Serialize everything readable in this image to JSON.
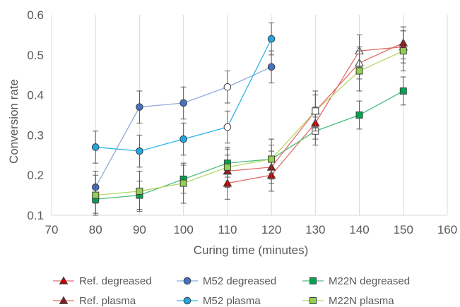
{
  "chart_data": {
    "type": "line",
    "title": "",
    "xlabel": "Curing time (minutes)",
    "ylabel": "Conversion rate",
    "xlim": [
      70,
      160
    ],
    "ylim": [
      0.1,
      0.6
    ],
    "x_ticks": [
      70,
      80,
      90,
      100,
      110,
      120,
      130,
      140,
      150,
      160
    ],
    "y_ticks": [
      0.1,
      0.2,
      0.3,
      0.4,
      0.5,
      0.6
    ],
    "x_tick_labels": [
      "70",
      "80",
      "90",
      "100",
      "110",
      "120",
      "130",
      "140",
      "150",
      "160"
    ],
    "y_tick_labels": [
      "0.1",
      "0.2",
      "0.3",
      "0.4",
      "0.5",
      "0.6"
    ],
    "grid": {
      "vertical": true,
      "horizontal": false
    },
    "legend_position": "bottom",
    "series": [
      {
        "name": "Ref. degreased",
        "color": "#e36c6c",
        "marker": "triangle",
        "marker_fill": "#c00000",
        "x": [
          110,
          120,
          130,
          140,
          150
        ],
        "y": [
          0.18,
          0.2,
          0.33,
          0.51,
          0.52
        ],
        "err": [
          0.04,
          0.04,
          0.04,
          0.04,
          0.04
        ],
        "hollow": [
          false,
          false,
          false,
          true,
          false
        ]
      },
      {
        "name": "M52 degreased",
        "color": "#8eaadb",
        "marker": "circle",
        "marker_fill": "#4472c4",
        "x": [
          80,
          90,
          100,
          110,
          120
        ],
        "y": [
          0.17,
          0.37,
          0.38,
          0.42,
          0.47
        ],
        "err": [
          0.04,
          0.04,
          0.04,
          0.04,
          0.04
        ],
        "hollow": [
          false,
          false,
          false,
          true,
          false
        ]
      },
      {
        "name": "M22N degreased",
        "color": "#4cbf7a",
        "marker": "square",
        "marker_fill": "#00a651",
        "x": [
          80,
          90,
          100,
          110,
          120,
          130,
          140,
          150
        ],
        "y": [
          0.14,
          0.15,
          0.19,
          0.23,
          0.24,
          0.31,
          0.35,
          0.41
        ],
        "err": [
          0.035,
          0.035,
          0.035,
          0.035,
          0.035,
          0.035,
          0.035,
          0.035
        ],
        "hollow": [
          false,
          false,
          false,
          false,
          false,
          true,
          false,
          false
        ]
      },
      {
        "name": "Ref. plasma",
        "color": "#e36c6c",
        "marker": "triangle",
        "marker_fill": "#8b1a1a",
        "x": [
          110,
          120,
          130,
          140,
          150
        ],
        "y": [
          0.21,
          0.22,
          0.36,
          0.48,
          0.53
        ],
        "err": [
          0.04,
          0.04,
          0.04,
          0.04,
          0.04
        ],
        "hollow": [
          false,
          false,
          false,
          true,
          false
        ]
      },
      {
        "name": "M52 plasma",
        "color": "#2bb5e8",
        "marker": "circle",
        "marker_fill": "#1fa8e0",
        "x": [
          80,
          90,
          100,
          110,
          120
        ],
        "y": [
          0.27,
          0.26,
          0.29,
          0.32,
          0.54
        ],
        "err": [
          0.04,
          0.04,
          0.04,
          0.04,
          0.04
        ],
        "hollow": [
          false,
          false,
          false,
          true,
          false
        ]
      },
      {
        "name": "M22N plasma",
        "color": "#b5d96b",
        "marker": "square",
        "marker_fill": "#92d050",
        "x": [
          80,
          90,
          100,
          110,
          120,
          130,
          140,
          150
        ],
        "y": [
          0.15,
          0.16,
          0.18,
          0.22,
          0.24,
          0.36,
          0.46,
          0.51
        ],
        "err": [
          0.05,
          0.05,
          0.05,
          0.05,
          0.05,
          0.05,
          0.05,
          0.05
        ],
        "hollow": [
          false,
          false,
          false,
          false,
          false,
          true,
          false,
          false
        ]
      }
    ]
  }
}
